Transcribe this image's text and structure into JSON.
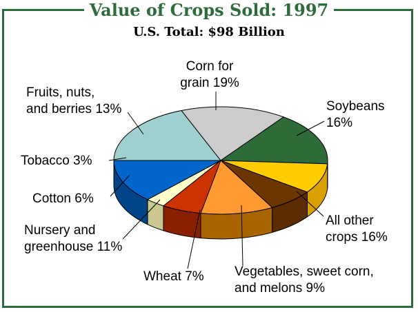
{
  "title": "Value of Crops Sold: 1997",
  "subtitle": "U.S. Total: $98 Billion",
  "chart_data": {
    "type": "pie",
    "title": "Value of Crops Sold: 1997",
    "subtitle": "U.S. Total: $98 Billion",
    "slices": [
      {
        "name": "Corn for grain",
        "value": 19,
        "color": "#9fd0cf",
        "side": "#6fa09f",
        "label": [
          "Corn for",
          "grain 19%"
        ]
      },
      {
        "name": "Soybeans",
        "value": 16,
        "color": "#cccccc",
        "side": "#999999",
        "label": [
          "Soybeans",
          "16%"
        ]
      },
      {
        "name": "All other crops",
        "value": 16,
        "color": "#2e6b38",
        "side": "#000000",
        "label": [
          "All other",
          "crops 16%"
        ]
      },
      {
        "name": "Vegetables, sweet corn, and melons",
        "value": 9,
        "color": "#ffcc00",
        "side": "#d9a000",
        "label": [
          "Vegetables, sweet corn,",
          "and melons 9%"
        ]
      },
      {
        "name": "Wheat",
        "value": 7,
        "color": "#6b3600",
        "side": "#5a2c00",
        "label": [
          "Wheat 7%"
        ]
      },
      {
        "name": "Nursery and greenhouse",
        "value": 11,
        "color": "#ff9a33",
        "side": "#a86400",
        "label": [
          "Nursery and",
          "greenhouse 11%"
        ]
      },
      {
        "name": "Cotton",
        "value": 6,
        "color": "#cc3300",
        "side": "#8a2000",
        "label": [
          "Cotton 6%"
        ]
      },
      {
        "name": "Tobacco",
        "value": 3,
        "color": "#ffffcc",
        "side": "#c8c890",
        "label": [
          "Tobacco 3%"
        ]
      },
      {
        "name": "Fruits, nuts, and berries",
        "value": 13,
        "color": "#0066cc",
        "side": "#004488",
        "label": [
          "Fruits, nuts,",
          "and berries 13%"
        ]
      }
    ]
  }
}
